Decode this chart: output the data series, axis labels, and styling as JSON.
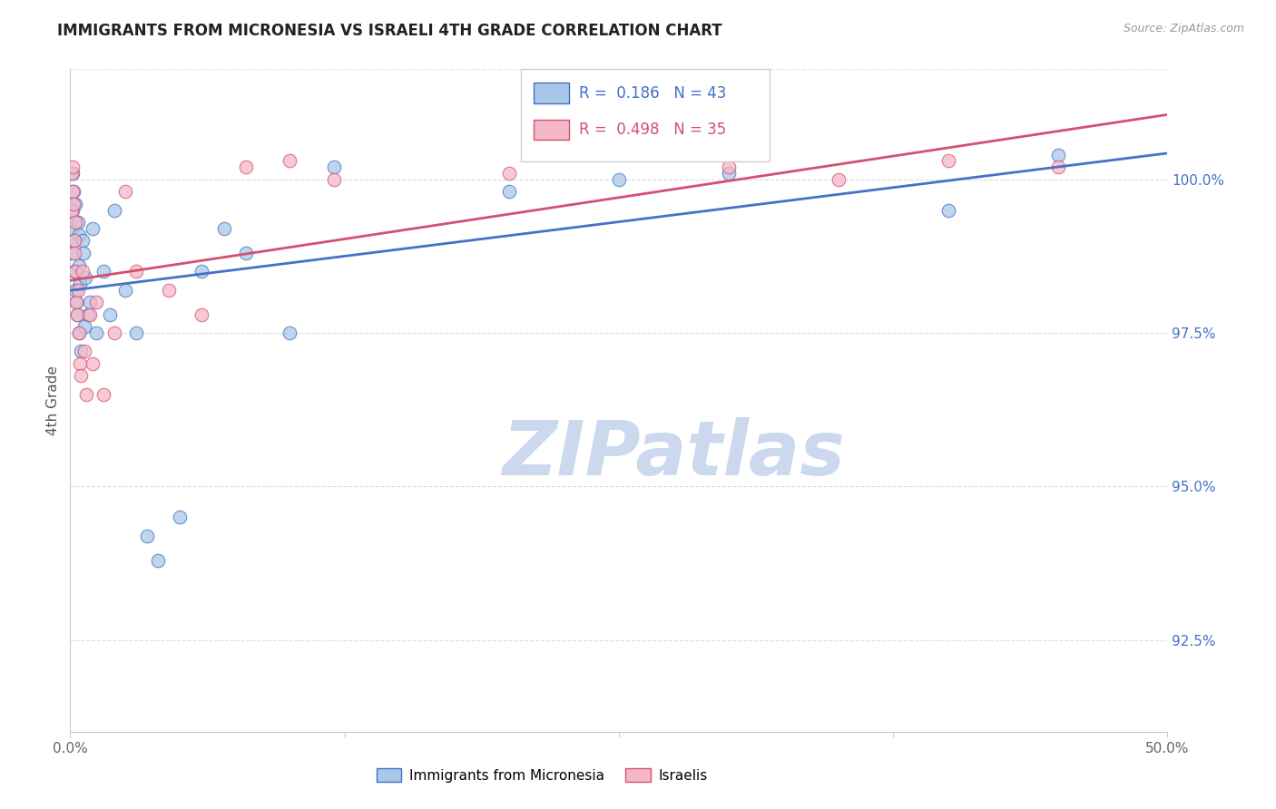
{
  "title": "IMMIGRANTS FROM MICRONESIA VS ISRAELI 4TH GRADE CORRELATION CHART",
  "source": "Source: ZipAtlas.com",
  "ylabel": "4th Grade",
  "xlim": [
    0.0,
    50.0
  ],
  "ylim": [
    91.0,
    101.8
  ],
  "xticks": [
    0.0,
    12.5,
    25.0,
    37.5,
    50.0
  ],
  "xticklabels": [
    "0.0%",
    "",
    "",
    "",
    "50.0%"
  ],
  "yticks": [
    92.5,
    95.0,
    97.5,
    100.0
  ],
  "yticklabels": [
    "92.5%",
    "95.0%",
    "97.5%",
    "100.0%"
  ],
  "blue_color": "#a8c8e8",
  "pink_color": "#f4b8c8",
  "blue_line_color": "#4472c4",
  "pink_line_color": "#d45070",
  "r_blue": 0.186,
  "n_blue": 43,
  "r_pink": 0.498,
  "n_pink": 35,
  "blue_x": [
    0.05,
    0.08,
    0.1,
    0.12,
    0.15,
    0.18,
    0.2,
    0.22,
    0.25,
    0.28,
    0.3,
    0.35,
    0.38,
    0.4,
    0.42,
    0.45,
    0.5,
    0.55,
    0.6,
    0.65,
    0.7,
    0.8,
    0.9,
    1.0,
    1.2,
    1.5,
    1.8,
    2.0,
    2.5,
    3.0,
    3.5,
    4.0,
    5.0,
    6.0,
    7.0,
    8.0,
    10.0,
    12.0,
    20.0,
    25.0,
    30.0,
    40.0,
    45.0
  ],
  "blue_y": [
    98.8,
    99.2,
    99.5,
    100.1,
    99.8,
    98.5,
    99.0,
    98.2,
    99.6,
    98.0,
    97.8,
    99.3,
    98.6,
    97.5,
    99.1,
    98.3,
    97.2,
    99.0,
    98.8,
    97.6,
    98.4,
    97.8,
    98.0,
    99.2,
    97.5,
    98.5,
    97.8,
    99.5,
    98.2,
    97.5,
    94.2,
    93.8,
    94.5,
    98.5,
    99.2,
    98.8,
    97.5,
    100.2,
    99.8,
    100.0,
    100.1,
    99.5,
    100.4
  ],
  "pink_x": [
    0.05,
    0.08,
    0.1,
    0.12,
    0.15,
    0.18,
    0.2,
    0.22,
    0.25,
    0.28,
    0.3,
    0.35,
    0.4,
    0.45,
    0.5,
    0.55,
    0.65,
    0.75,
    0.9,
    1.0,
    1.2,
    1.5,
    2.0,
    2.5,
    3.0,
    4.5,
    6.0,
    8.0,
    10.0,
    12.0,
    20.0,
    30.0,
    35.0,
    40.0,
    45.0
  ],
  "pink_y": [
    99.5,
    100.1,
    99.8,
    100.2,
    99.6,
    99.0,
    98.8,
    99.3,
    98.5,
    98.0,
    97.8,
    98.2,
    97.5,
    97.0,
    96.8,
    98.5,
    97.2,
    96.5,
    97.8,
    97.0,
    98.0,
    96.5,
    97.5,
    99.8,
    98.5,
    98.2,
    97.8,
    100.2,
    100.3,
    100.0,
    100.1,
    100.2,
    100.0,
    100.3,
    100.2
  ],
  "watermark_text": "ZIPatlas",
  "watermark_color": "#ccd8ee",
  "axis_color": "#cccccc",
  "grid_color": "#cccccc"
}
